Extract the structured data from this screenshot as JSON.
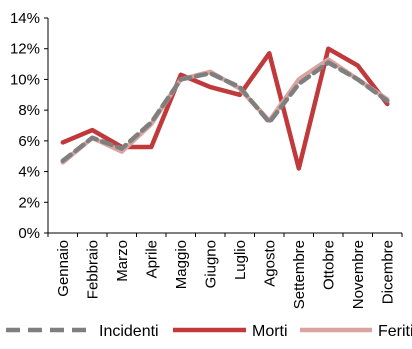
{
  "chart_data": {
    "type": "line",
    "categories": [
      "Gennaio",
      "Febbraio",
      "Marzo",
      "Aprile",
      "Maggio",
      "Giugno",
      "Luglio",
      "Agosto",
      "Settembre",
      "Ottobre",
      "Novembre",
      "Dicembre"
    ],
    "ylim": [
      0,
      14
    ],
    "yticks": [
      0,
      2,
      4,
      6,
      8,
      10,
      12,
      14
    ],
    "ytick_labels": [
      "0%",
      "2%",
      "4%",
      "6%",
      "8%",
      "10%",
      "12%",
      "14%"
    ],
    "grid": false,
    "legend_position": "bottom",
    "series": [
      {
        "name": "Incidenti",
        "color": "#7f7f7f",
        "dash": "dashed",
        "values": [
          4.7,
          6.2,
          5.5,
          7.2,
          10.0,
          10.4,
          9.5,
          7.2,
          9.7,
          11.1,
          10.0,
          8.6
        ]
      },
      {
        "name": "Morti",
        "color": "#c0393b",
        "dash": "solid",
        "values": [
          5.9,
          6.7,
          5.6,
          5.6,
          10.3,
          9.5,
          9.0,
          11.7,
          4.2,
          12.0,
          10.9,
          8.4
        ]
      },
      {
        "name": "Feriti",
        "color": "#d9a3a0",
        "dash": "solid",
        "values": [
          4.6,
          6.2,
          5.3,
          7.1,
          10.0,
          10.5,
          9.4,
          7.3,
          10.0,
          11.3,
          10.0,
          8.7
        ]
      }
    ]
  }
}
